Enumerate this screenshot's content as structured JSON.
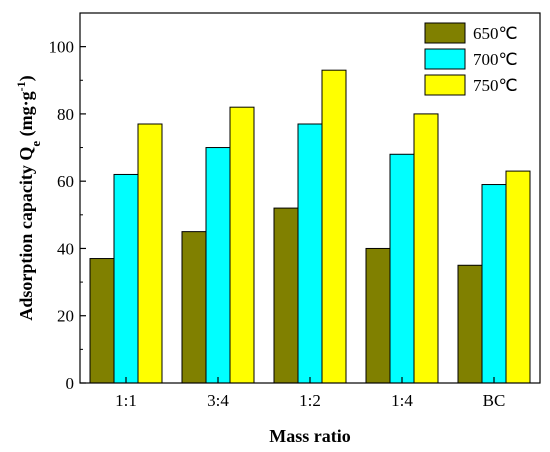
{
  "chart_data": {
    "type": "bar",
    "categories": [
      "1:1",
      "3:4",
      "1:2",
      "1:4",
      "BC"
    ],
    "series": [
      {
        "name": "650℃",
        "values": [
          37,
          45,
          52,
          40,
          35
        ],
        "color": "#808000"
      },
      {
        "name": "700℃",
        "values": [
          62,
          70,
          77,
          68,
          59
        ],
        "color": "#00FFFF"
      },
      {
        "name": "750℃",
        "values": [
          77,
          82,
          93,
          80,
          63
        ],
        "color": "#FFFF00"
      }
    ],
    "xlabel": "Mass ratio",
    "ylabel": {
      "main": "Adsorption capacity Q",
      "sub": "e",
      "unit_open": " (mg·g",
      "unit_sup": "-1",
      "unit_close": ")"
    },
    "ylim": [
      0,
      110
    ],
    "yticks": [
      0,
      20,
      40,
      60,
      80,
      100
    ],
    "legend_position": "top-right",
    "grid": false
  }
}
